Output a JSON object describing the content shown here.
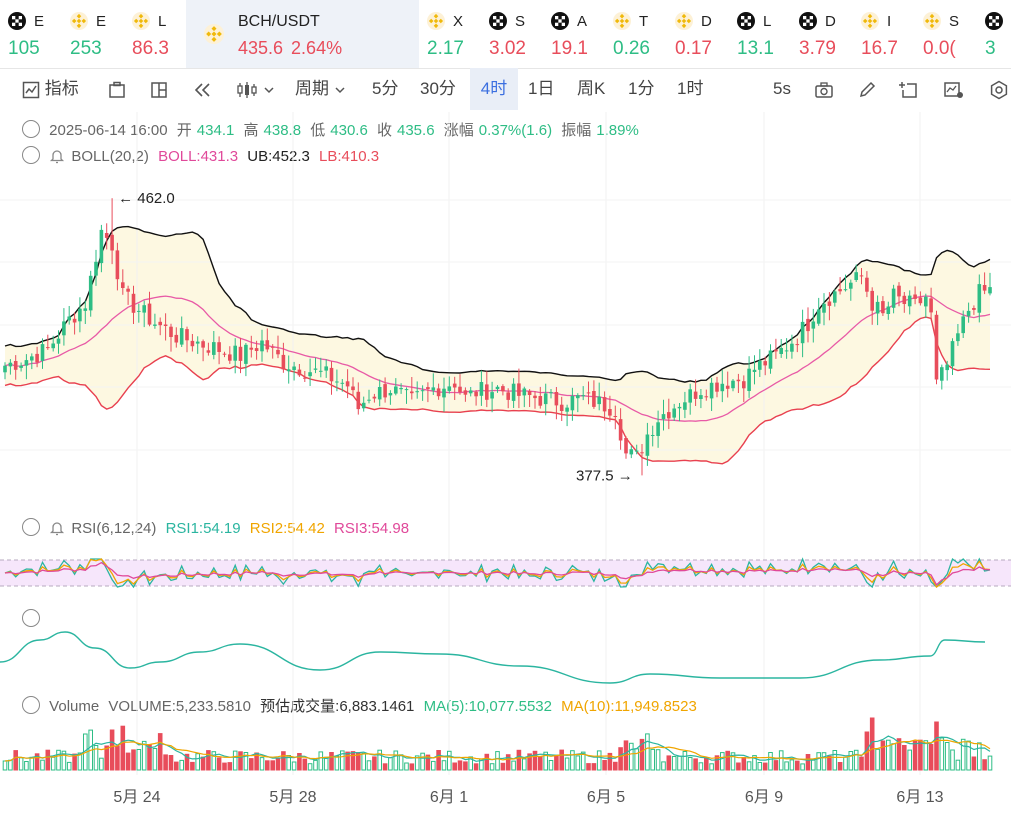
{
  "tickers": [
    {
      "sym": "E",
      "val": "105",
      "dir": "up",
      "icon": "okx-icon"
    },
    {
      "sym": "E",
      "val": "253",
      "dir": "up",
      "icon": "binance-icon"
    },
    {
      "sym": "L",
      "val": "86.3",
      "dir": "down",
      "icon": "binance-icon"
    },
    {
      "sym": "BCH/USDT",
      "val": "435.6",
      "pct": "2.64%",
      "dir": "down",
      "icon": "binance-icon",
      "active": true
    },
    {
      "sym": "X",
      "val": "2.17",
      "dir": "up",
      "icon": "binance-icon"
    },
    {
      "sym": "S",
      "val": "3.02",
      "dir": "down",
      "icon": "okx-icon"
    },
    {
      "sym": "A",
      "val": "19.1",
      "dir": "down",
      "icon": "okx-icon"
    },
    {
      "sym": "T",
      "val": "0.26",
      "dir": "up",
      "icon": "binance-icon"
    },
    {
      "sym": "D",
      "val": "0.17",
      "dir": "down",
      "icon": "binance-icon"
    },
    {
      "sym": "L",
      "val": "13.1",
      "dir": "up",
      "icon": "okx-icon"
    },
    {
      "sym": "D",
      "val": "3.79",
      "dir": "down",
      "icon": "okx-icon"
    },
    {
      "sym": "I",
      "val": "16.7",
      "dir": "down",
      "icon": "binance-icon"
    },
    {
      "sym": "S",
      "val": "0.0(",
      "dir": "down",
      "icon": "binance-icon"
    },
    {
      "sym": "",
      "val": "3",
      "dir": "up",
      "icon": "okx-icon"
    }
  ],
  "toolbar": {
    "indicator": "指标",
    "period": "周期",
    "intervals": [
      "5分",
      "30分",
      "4时",
      "1日",
      "周K",
      "1分",
      "1时"
    ],
    "active_interval": "4时",
    "refresh": "5s"
  },
  "ohlc": {
    "date": "2025-06-14 16:00",
    "open_label": "开",
    "open": "434.1",
    "high_label": "高",
    "high": "438.8",
    "low_label": "低",
    "low": "430.6",
    "close_label": "收",
    "close": "435.6",
    "chg_label": "涨幅",
    "chg": "0.37%(1.6)",
    "amp_label": "振幅",
    "amp": "1.89%"
  },
  "boll": {
    "name": "BOLL(20,2)",
    "mid": "BOLL:431.3",
    "ub": "UB:452.3",
    "lb": "LB:410.3"
  },
  "rsi": {
    "name": "RSI(6,12,24)",
    "r1": "RSI1:54.19",
    "r2": "RSI2:54.42",
    "r3": "RSI3:54.98"
  },
  "volume": {
    "name": "Volume",
    "vol": "VOLUME:5,233.5810",
    "est": "预估成交量:6,883.1461",
    "ma5": "MA(5):10,077.5532",
    "ma10": "MA(10):11,949.8523"
  },
  "chart_data": {
    "type": "candlestick",
    "pair": "BCH/USDT",
    "interval": "4时",
    "x_ticks": [
      "5月 24",
      "5月 28",
      "6月 1",
      "6月 5",
      "6月 9",
      "6月 13"
    ],
    "high_marker": "462.0",
    "low_marker": "377.5",
    "price_range": [
      370,
      470
    ],
    "close_path": [
      [
        0,
        411
      ],
      [
        4,
        413
      ],
      [
        8,
        416
      ],
      [
        12,
        425
      ],
      [
        15,
        430
      ],
      [
        18,
        452
      ],
      [
        20,
        448
      ],
      [
        22,
        432
      ],
      [
        25,
        428
      ],
      [
        28,
        424
      ],
      [
        32,
        420
      ],
      [
        36,
        418
      ],
      [
        40,
        416
      ],
      [
        44,
        414
      ],
      [
        48,
        418
      ],
      [
        52,
        412
      ],
      [
        56,
        410
      ],
      [
        60,
        408
      ],
      [
        64,
        405
      ],
      [
        66,
        398
      ],
      [
        68,
        402
      ],
      [
        72,
        404
      ],
      [
        76,
        400
      ],
      [
        80,
        404
      ],
      [
        84,
        406
      ],
      [
        86,
        401
      ],
      [
        88,
        403
      ],
      [
        92,
        404
      ],
      [
        96,
        402
      ],
      [
        100,
        401
      ],
      [
        104,
        400
      ],
      [
        108,
        401
      ],
      [
        112,
        399
      ],
      [
        114,
        398
      ],
      [
        116,
        384
      ],
      [
        118,
        383
      ],
      [
        120,
        390
      ],
      [
        122,
        395
      ],
      [
        126,
        400
      ],
      [
        130,
        404
      ],
      [
        134,
        406
      ],
      [
        138,
        407
      ],
      [
        140,
        410
      ],
      [
        144,
        414
      ],
      [
        148,
        420
      ],
      [
        150,
        424
      ],
      [
        152,
        430
      ],
      [
        156,
        434
      ],
      [
        158,
        436
      ],
      [
        160,
        438
      ],
      [
        162,
        430
      ],
      [
        164,
        426
      ],
      [
        166,
        432
      ],
      [
        168,
        430
      ],
      [
        170,
        429
      ],
      [
        172,
        432
      ],
      [
        173,
        426
      ],
      [
        174,
        405
      ],
      [
        176,
        411
      ],
      [
        178,
        420
      ],
      [
        180,
        428
      ],
      [
        182,
        433
      ],
      [
        184,
        434
      ]
    ]
  }
}
